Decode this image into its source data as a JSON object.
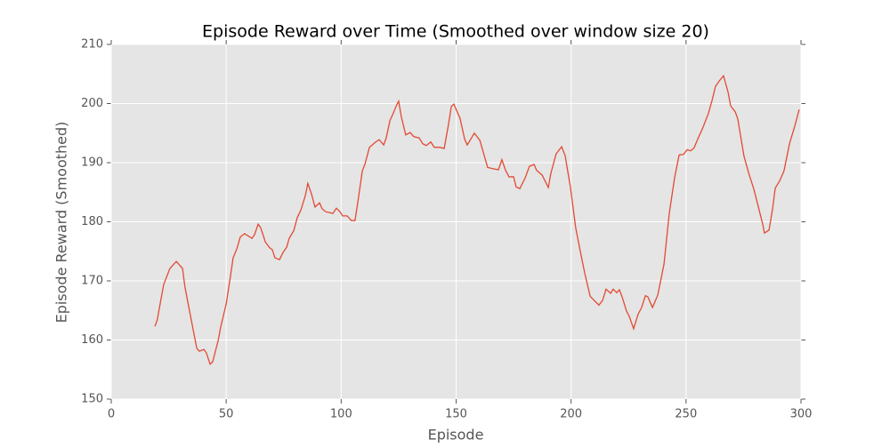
{
  "chart_data": {
    "type": "line",
    "title": "Episode Reward over Time (Smoothed over window size 20)",
    "xlabel": "Episode",
    "ylabel": "Episode Reward (Smoothed)",
    "xlim": [
      0,
      300
    ],
    "xticks": [
      0,
      50,
      100,
      150,
      200,
      250,
      300
    ],
    "ylim": [
      150,
      210
    ],
    "yticks": [
      150,
      160,
      170,
      180,
      190,
      200,
      210
    ],
    "grid": true,
    "x": [
      19,
      20,
      22.8,
      25.5,
      28.3,
      31,
      32,
      33.7,
      37.2,
      38.3,
      40.3,
      41.4,
      43,
      44.1,
      46.5,
      47.6,
      50,
      51.9,
      53,
      54.6,
      56.1,
      58,
      61.2,
      62.3,
      63.9,
      65,
      67,
      68.9,
      70,
      71.2,
      73.2,
      74.7,
      76.3,
      77.4,
      79.4,
      80.9,
      82.5,
      84.4,
      85.5,
      87.1,
      88.6,
      90.6,
      91.7,
      93.3,
      96.4,
      97.9,
      99.5,
      100.6,
      102.6,
      104.5,
      106,
      107.2,
      109.2,
      110.3,
      112.3,
      115,
      116.5,
      118.5,
      119.6,
      121.2,
      122.7,
      124.3,
      125,
      126.2,
      128.1,
      130,
      131.6,
      133.9,
      135.5,
      137,
      139,
      140.5,
      142.8,
      144.8,
      146.7,
      147.9,
      149,
      151.7,
      153.7,
      154.8,
      156.4,
      157.9,
      160.3,
      163.7,
      165.7,
      168.4,
      169.9,
      171.5,
      173,
      175,
      176.1,
      177.7,
      180,
      181.9,
      183.9,
      185,
      187.4,
      190.1,
      191.2,
      193.5,
      195.9,
      197.4,
      199.7,
      202,
      204,
      206,
      208.3,
      209.8,
      212.1,
      213.7,
      215.2,
      217.2,
      218.3,
      219.9,
      221,
      222.2,
      224.1,
      225.3,
      227.2,
      229.2,
      230.7,
      232.3,
      233.4,
      235.4,
      237.7,
      240.4,
      242.7,
      245,
      247,
      248.9,
      250.5,
      252,
      253.5,
      255.1,
      257.4,
      259.7,
      261.3,
      262.8,
      264.4,
      266.3,
      268.3,
      269.4,
      271.4,
      272.5,
      275.2,
      277.2,
      279.5,
      281.4,
      283.4,
      284.1,
      286.1,
      287.6,
      288.8,
      290.7,
      292.6,
      295,
      297.3,
      299.2
    ],
    "series": [
      {
        "color": "#e24a33",
        "values": [
          162.3,
          163.4,
          169.4,
          172.1,
          173.3,
          172.1,
          169.1,
          165.6,
          158.6,
          158.1,
          158.4,
          157.8,
          155.9,
          156.3,
          159.9,
          162.2,
          166.1,
          170.9,
          173.9,
          175.4,
          177.4,
          178,
          177.2,
          177.8,
          179.6,
          179,
          176.6,
          175.6,
          175.3,
          173.9,
          173.6,
          174.8,
          175.7,
          177.2,
          178.5,
          180.7,
          182,
          184.4,
          186.5,
          184.7,
          182.5,
          183.2,
          182.2,
          181.7,
          181.4,
          182.3,
          181.7,
          181,
          181,
          180.2,
          180.2,
          183.2,
          188.6,
          189.7,
          192.6,
          193.5,
          193.9,
          193,
          194.2,
          197.1,
          198.4,
          199.9,
          200.4,
          197.7,
          194.7,
          195.1,
          194.4,
          194.2,
          193.2,
          192.9,
          193.5,
          192.6,
          192.6,
          192.4,
          196.5,
          199.5,
          199.9,
          197.5,
          194,
          193,
          194,
          195,
          193.8,
          189.2,
          189,
          188.8,
          190.5,
          188.7,
          187.6,
          187.6,
          185.9,
          185.6,
          187.4,
          189.4,
          189.7,
          188.7,
          187.9,
          185.8,
          188.2,
          191.5,
          192.7,
          191.2,
          185.9,
          179,
          175,
          171.2,
          167.4,
          166.8,
          165.9,
          166.7,
          168.6,
          167.9,
          168.6,
          168,
          168.5,
          167.3,
          164.9,
          164,
          161.9,
          164.4,
          165.5,
          167.5,
          167.3,
          165.5,
          167.6,
          172.8,
          181.4,
          187.4,
          191.3,
          191.4,
          192.2,
          192,
          192.5,
          194,
          196,
          198.3,
          200.5,
          202.9,
          203.8,
          204.7,
          201.9,
          199.6,
          198.6,
          197.4,
          191.1,
          188.3,
          185.5,
          182.6,
          179.5,
          178.1,
          178.6,
          182.1,
          185.7,
          186.9,
          188.6,
          193.2,
          196.2,
          199
        ]
      }
    ]
  }
}
